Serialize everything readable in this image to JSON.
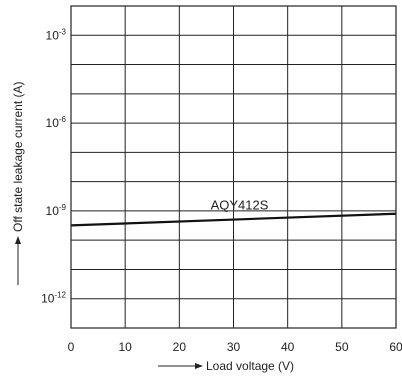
{
  "chart_data": {
    "type": "line",
    "xlabel": "Load voltage (V)",
    "ylabel": "Off state leakage current (A)",
    "xlim": [
      0,
      60
    ],
    "ylim": [
      1e-13,
      0.01
    ],
    "yscale": "log",
    "grid": true,
    "x_ticks": [
      "0",
      "10",
      "20",
      "30",
      "40",
      "50",
      "60"
    ],
    "y_ticks": [
      {
        "base": "10",
        "exp": "-3",
        "value": 0.001
      },
      {
        "base": "10",
        "exp": "-6",
        "value": 1e-06
      },
      {
        "base": "10",
        "exp": "-9",
        "value": 1e-09
      },
      {
        "base": "10",
        "exp": "-12",
        "value": 1e-12
      }
    ],
    "series": [
      {
        "name": "AQY412S",
        "x": [
          0,
          60
        ],
        "y": [
          3.2e-10,
          8e-10
        ]
      }
    ]
  }
}
